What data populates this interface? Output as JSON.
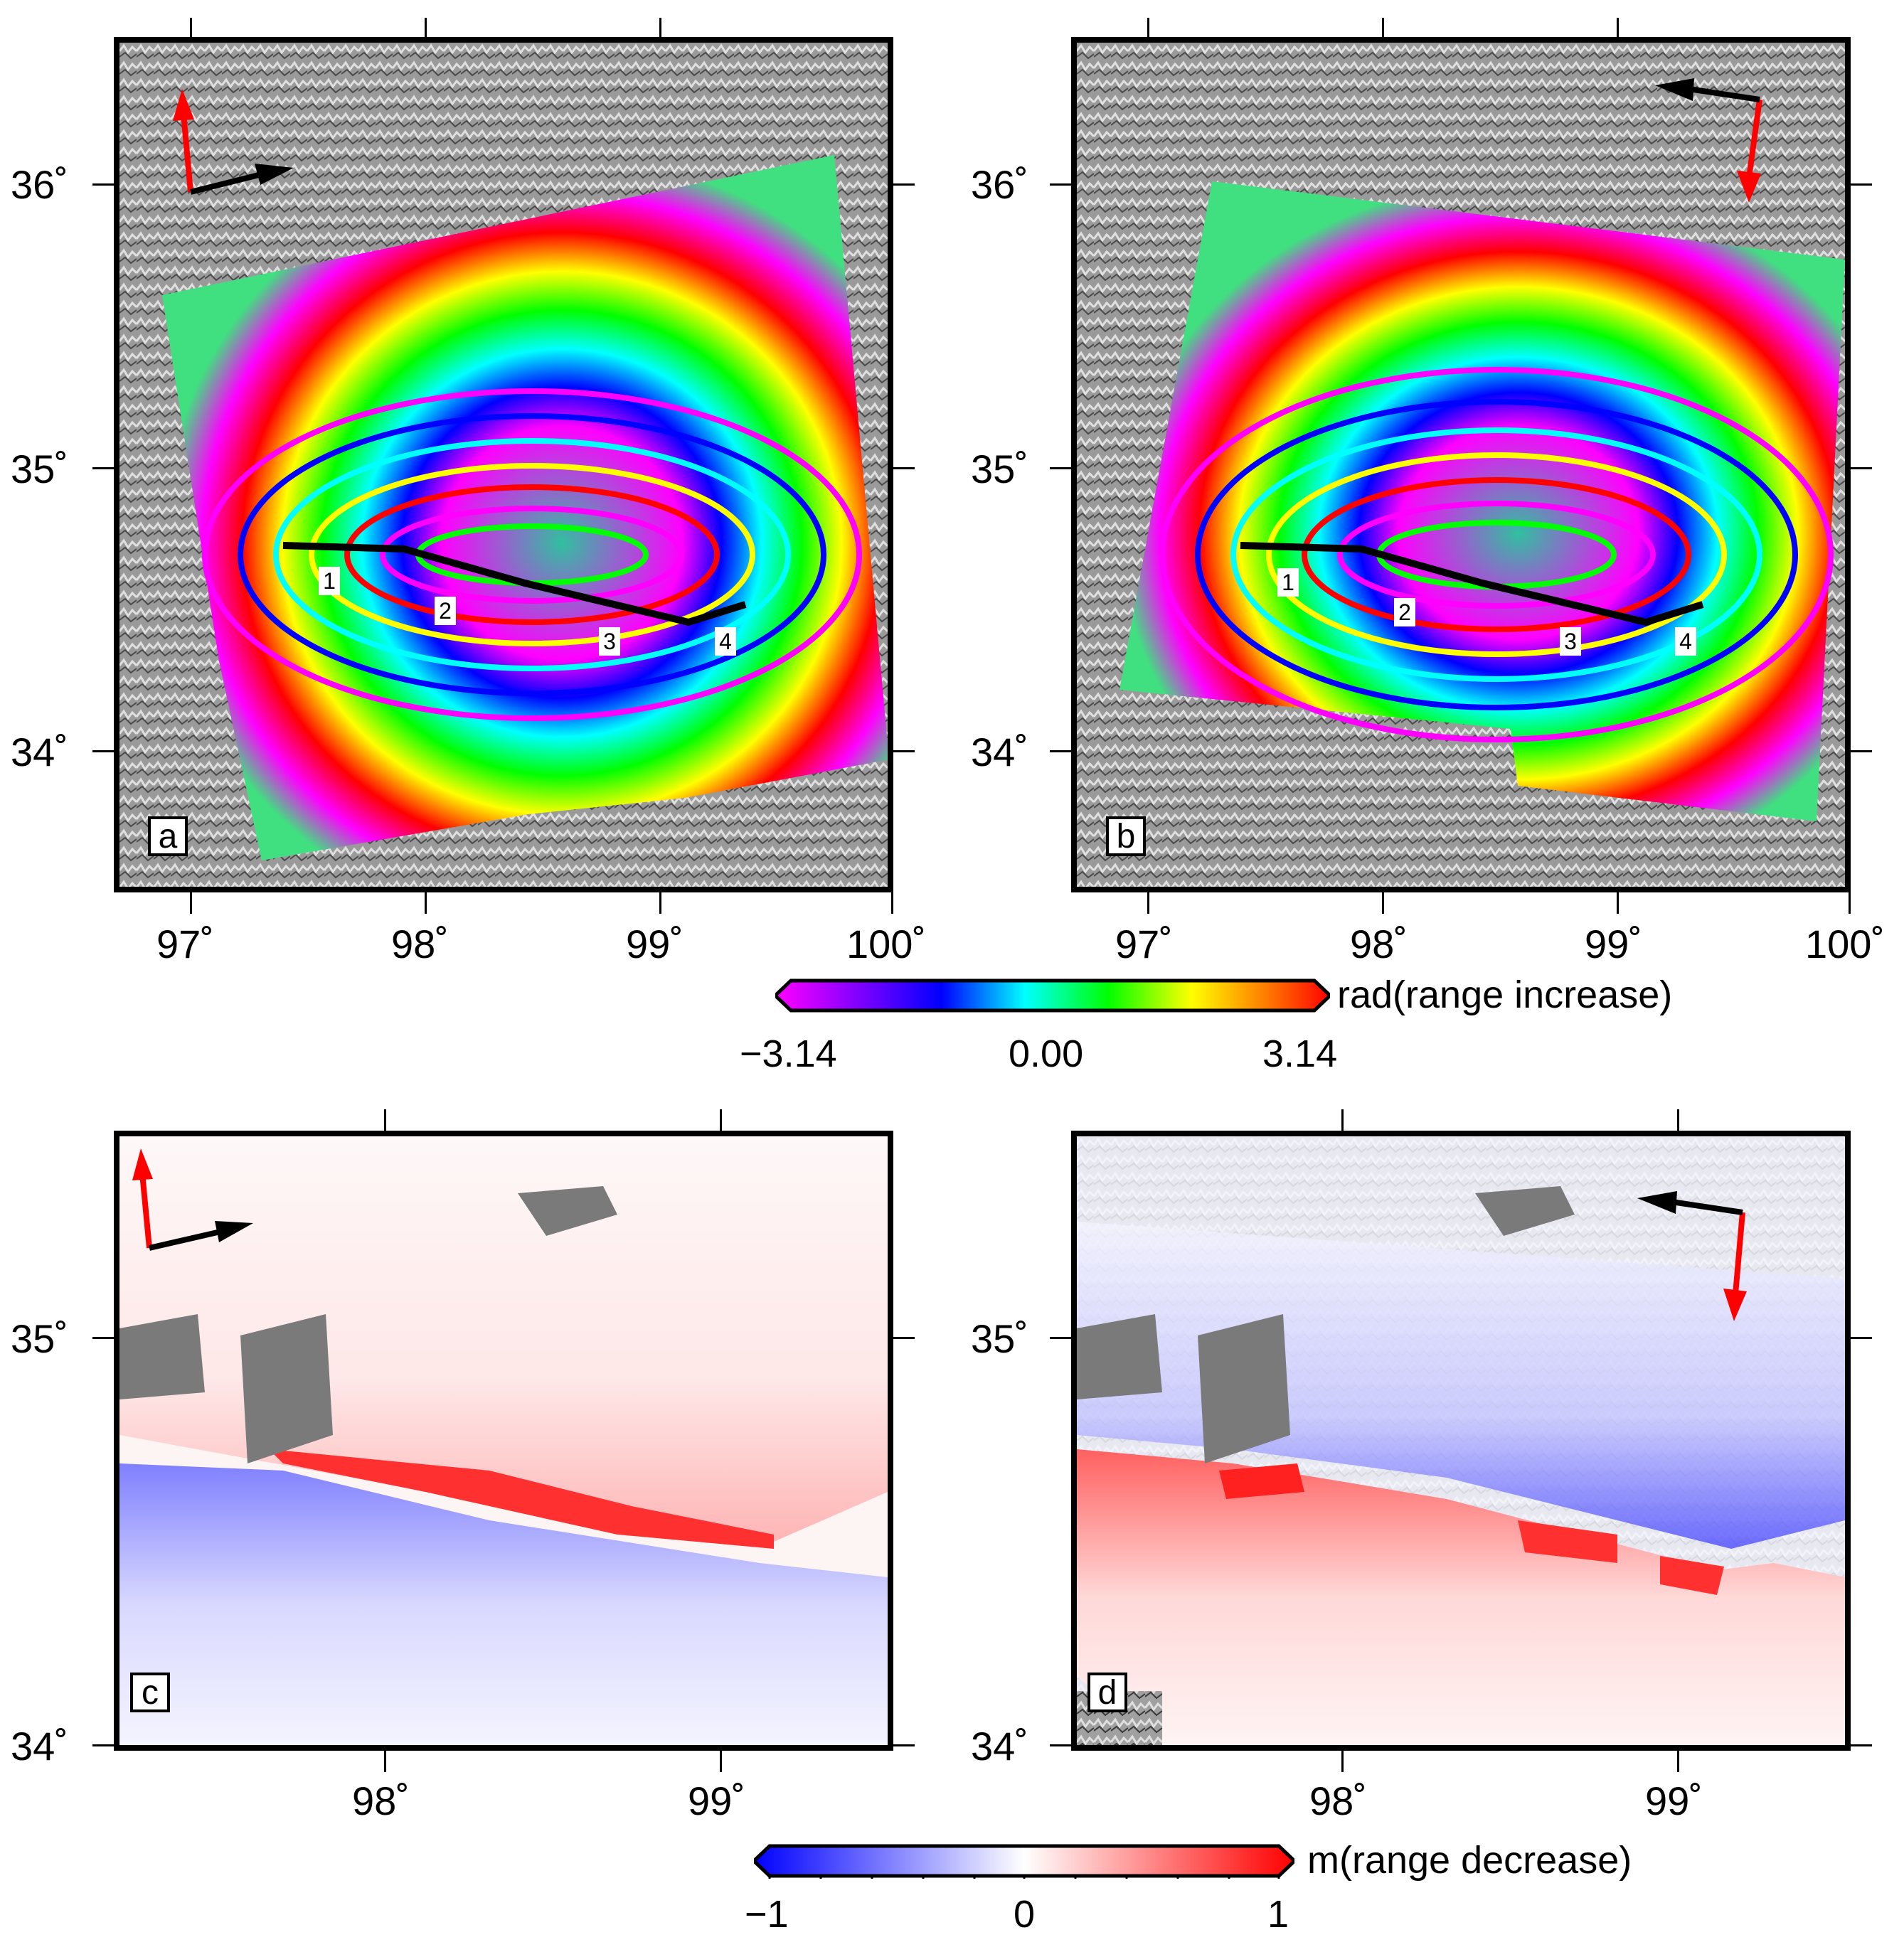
{
  "panels": {
    "a": {
      "letter": "a",
      "lat_labels": [
        "36˚",
        "35˚",
        "34˚"
      ],
      "lon_labels": [
        "97˚",
        "98˚",
        "99˚",
        "100˚"
      ]
    },
    "b": {
      "letter": "b",
      "lat_labels": [
        "36˚",
        "35˚",
        "34˚"
      ],
      "lon_labels": [
        "97˚",
        "98˚",
        "99˚",
        "100˚"
      ]
    },
    "c": {
      "letter": "c",
      "lat_labels": [
        "35˚",
        "34˚"
      ],
      "lon_labels": [
        "98˚",
        "99˚"
      ]
    },
    "d": {
      "letter": "d",
      "lat_labels": [
        "35˚",
        "34˚"
      ],
      "lon_labels": [
        "98˚",
        "99˚"
      ]
    }
  },
  "fault_segments": [
    "1",
    "2",
    "3",
    "4"
  ],
  "colorbar_phase": {
    "label": "rad(range increase)",
    "ticks": [
      "−3.14",
      "0.00",
      "3.14"
    ],
    "colors": [
      "#ff00ff",
      "#8000ff",
      "#0000ff",
      "#00ffff",
      "#00ff00",
      "#ffff00",
      "#ff8000",
      "#ff0000"
    ]
  },
  "colorbar_disp": {
    "label": "m(range decrease)",
    "ticks": [
      "−1",
      "0",
      "1"
    ],
    "colors": [
      "#0000ff",
      "#ffffff",
      "#ff0000"
    ]
  },
  "arrows": {
    "azimuth_color": "#ff0000",
    "look_color": "#000000"
  }
}
